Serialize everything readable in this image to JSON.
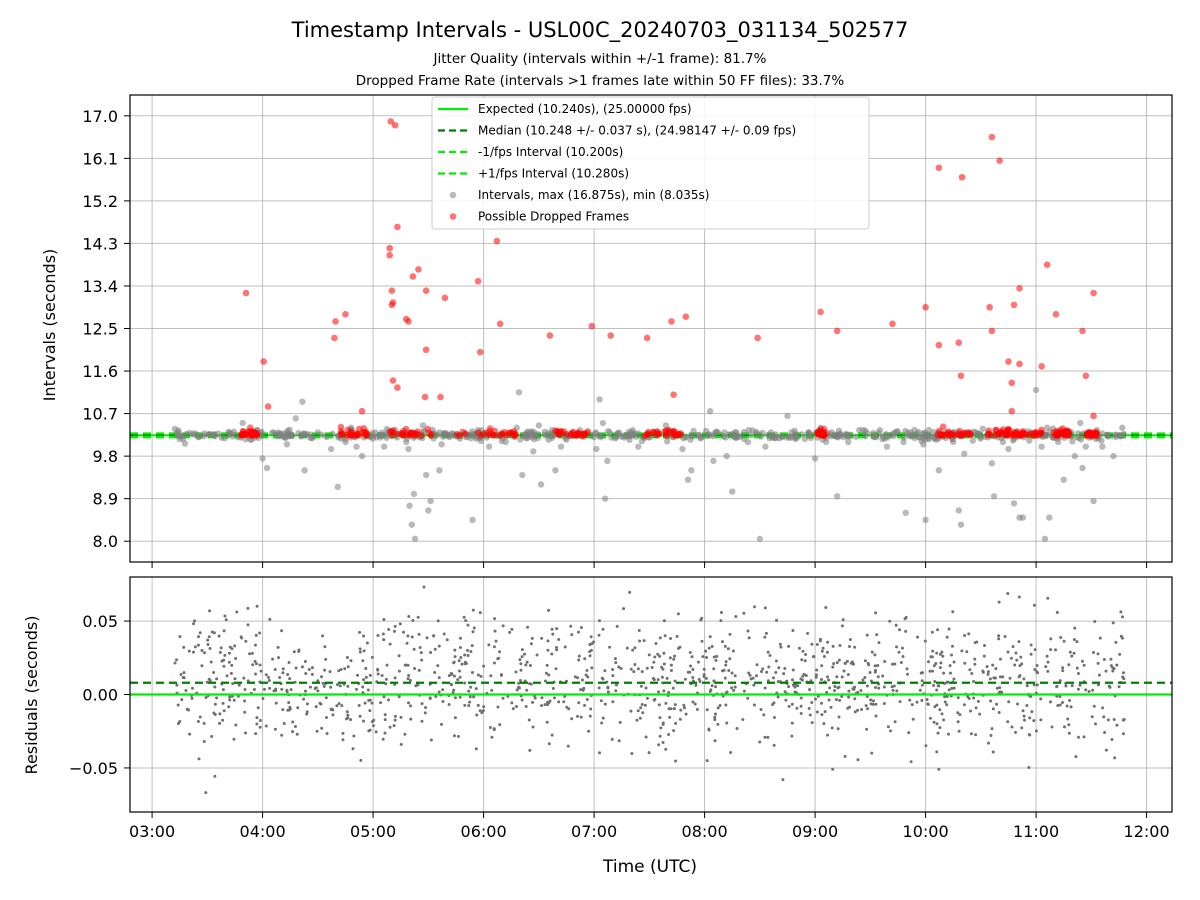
{
  "chart_data": [
    {
      "type": "scatter",
      "title": "Timestamp Intervals - USL00C_20240703_031134_502577",
      "subtitle_lines": [
        "Jitter Quality (intervals within +/-1 frame): 81.7%",
        "Dropped Frame Rate (intervals >1 frames late within 50 FF files): 33.7%"
      ],
      "ylabel": "Intervals (seconds)",
      "ylim": [
        7.56,
        17.44
      ],
      "yticks": [
        "17.0",
        "16.1",
        "15.2",
        "14.3",
        "13.4",
        "12.5",
        "11.6",
        "10.7",
        "9.8",
        "8.9",
        "8.0"
      ],
      "ytick_values": [
        17.0,
        16.1,
        15.2,
        14.3,
        13.4,
        12.5,
        11.6,
        10.7,
        9.8,
        8.9,
        8.0
      ],
      "xlim": [
        2.8,
        12.23
      ],
      "xticks": [
        "03:00",
        "04:00",
        "05:00",
        "06:00",
        "07:00",
        "08:00",
        "09:00",
        "10:00",
        "11:00",
        "12:00"
      ],
      "grid": true,
      "legend_position": "upper center",
      "reference_lines": [
        {
          "name": "Expected (10.240s), (25.00000 fps)",
          "y": 10.24,
          "style": "solid",
          "color": "#00ee00"
        },
        {
          "name": "Median (10.248 +/- 0.037 s), (24.98147 +/- 0.09 fps)",
          "y": 10.248,
          "style": "dashed",
          "color": "#007f00"
        },
        {
          "name": "-1/fps Interval (10.200s)",
          "y": 10.2,
          "style": "dashed",
          "color": "#00ee00"
        },
        {
          "name": "+1/fps Interval (10.280s)",
          "y": 10.28,
          "style": "dashed",
          "color": "#00ee00"
        }
      ],
      "series": [
        {
          "name": "Intervals, max (16.875s), min (8.035s)",
          "color": "#808080",
          "points": [
            [
              3.78,
              10.2
            ],
            [
              3.82,
              10.5
            ],
            [
              3.86,
              10.3
            ],
            [
              3.9,
              10.15
            ],
            [
              3.95,
              10.35
            ],
            [
              4.0,
              9.75
            ],
            [
              4.04,
              9.55
            ],
            [
              4.1,
              10.3
            ],
            [
              4.22,
              10.05
            ],
            [
              4.3,
              10.6
            ],
            [
              4.36,
              10.95
            ],
            [
              4.38,
              9.5
            ],
            [
              4.5,
              10.3
            ],
            [
              4.62,
              9.95
            ],
            [
              4.68,
              9.15
            ],
            [
              4.75,
              10.1
            ],
            [
              4.8,
              10.4
            ],
            [
              4.85,
              10.0
            ],
            [
              4.9,
              9.8
            ],
            [
              5.02,
              10.3
            ],
            [
              5.1,
              10.0
            ],
            [
              5.2,
              10.35
            ],
            [
              5.3,
              10.1
            ],
            [
              5.32,
              9.95
            ],
            [
              5.33,
              8.75
            ],
            [
              5.35,
              8.35
            ],
            [
              5.37,
              9.0
            ],
            [
              5.38,
              8.05
            ],
            [
              5.42,
              10.2
            ],
            [
              5.45,
              10.45
            ],
            [
              5.48,
              9.4
            ],
            [
              5.5,
              8.65
            ],
            [
              5.52,
              8.85
            ],
            [
              5.6,
              9.5
            ],
            [
              5.62,
              10.05
            ],
            [
              5.85,
              10.2
            ],
            [
              5.9,
              8.45
            ],
            [
              5.95,
              10.35
            ],
            [
              6.05,
              10.0
            ],
            [
              6.2,
              10.1
            ],
            [
              6.3,
              10.4
            ],
            [
              6.35,
              9.4
            ],
            [
              6.32,
              11.15
            ],
            [
              6.4,
              10.3
            ],
            [
              6.45,
              9.9
            ],
            [
              6.5,
              10.45
            ],
            [
              6.52,
              9.2
            ],
            [
              6.62,
              10.35
            ],
            [
              6.65,
              9.5
            ],
            [
              6.7,
              10.0
            ],
            [
              6.75,
              10.15
            ],
            [
              6.8,
              10.3
            ],
            [
              7.0,
              10.2
            ],
            [
              7.02,
              9.95
            ],
            [
              7.05,
              11.0
            ],
            [
              7.08,
              10.5
            ],
            [
              7.1,
              8.9
            ],
            [
              7.12,
              9.7
            ],
            [
              7.2,
              10.2
            ],
            [
              7.35,
              10.35
            ],
            [
              7.4,
              10.0
            ],
            [
              7.55,
              10.3
            ],
            [
              7.65,
              10.45
            ],
            [
              7.72,
              10.2
            ],
            [
              7.8,
              9.95
            ],
            [
              7.85,
              9.3
            ],
            [
              7.88,
              9.5
            ],
            [
              7.95,
              10.25
            ],
            [
              8.05,
              10.75
            ],
            [
              8.08,
              9.7
            ],
            [
              8.12,
              10.3
            ],
            [
              8.2,
              9.8
            ],
            [
              8.25,
              9.05
            ],
            [
              8.3,
              10.2
            ],
            [
              8.4,
              10.35
            ],
            [
              8.5,
              8.05
            ],
            [
              8.55,
              10.0
            ],
            [
              8.6,
              10.3
            ],
            [
              8.75,
              10.65
            ],
            [
              8.82,
              10.25
            ],
            [
              9.0,
              9.75
            ],
            [
              9.05,
              10.4
            ],
            [
              9.1,
              10.1
            ],
            [
              9.15,
              10.3
            ],
            [
              9.2,
              8.95
            ],
            [
              9.3,
              10.1
            ],
            [
              9.4,
              10.35
            ],
            [
              9.55,
              10.2
            ],
            [
              9.65,
              10.0
            ],
            [
              9.72,
              10.3
            ],
            [
              9.8,
              10.1
            ],
            [
              9.82,
              8.6
            ],
            [
              9.9,
              10.35
            ],
            [
              9.95,
              10.2
            ],
            [
              9.98,
              10.05
            ],
            [
              10.0,
              8.45
            ],
            [
              10.03,
              10.35
            ],
            [
              10.1,
              10.15
            ],
            [
              10.12,
              9.5
            ],
            [
              10.18,
              10.3
            ],
            [
              10.25,
              10.1
            ],
            [
              10.3,
              8.65
            ],
            [
              10.32,
              8.35
            ],
            [
              10.35,
              9.85
            ],
            [
              10.4,
              10.3
            ],
            [
              10.5,
              10.2
            ],
            [
              10.6,
              9.65
            ],
            [
              10.62,
              8.95
            ],
            [
              10.7,
              10.1
            ],
            [
              10.75,
              9.95
            ],
            [
              10.8,
              8.8
            ],
            [
              10.85,
              8.5
            ],
            [
              10.88,
              8.5
            ],
            [
              10.95,
              10.3
            ],
            [
              11.0,
              11.2
            ],
            [
              11.05,
              10.0
            ],
            [
              11.08,
              8.05
            ],
            [
              11.1,
              10.4
            ],
            [
              11.12,
              8.5
            ],
            [
              11.2,
              10.1
            ],
            [
              11.25,
              9.3
            ],
            [
              11.3,
              10.3
            ],
            [
              11.35,
              9.8
            ],
            [
              11.4,
              10.5
            ],
            [
              11.42,
              9.55
            ],
            [
              11.45,
              10.0
            ],
            [
              11.5,
              10.2
            ],
            [
              11.52,
              8.85
            ],
            [
              11.55,
              10.35
            ],
            [
              11.6,
              10.0
            ],
            [
              11.65,
              10.25
            ],
            [
              11.7,
              9.8
            ],
            [
              11.78,
              10.4
            ]
          ]
        },
        {
          "name": "Possible Dropped Frames",
          "color": "#ff0000",
          "points": [
            [
              3.85,
              13.25
            ],
            [
              4.01,
              11.8
            ],
            [
              4.05,
              10.85
            ],
            [
              4.65,
              12.3
            ],
            [
              4.66,
              12.65
            ],
            [
              4.75,
              12.8
            ],
            [
              4.9,
              10.75
            ],
            [
              5.16,
              16.88
            ],
            [
              5.2,
              16.8
            ],
            [
              5.15,
              14.2
            ],
            [
              5.15,
              14.05
            ],
            [
              5.22,
              14.65
            ],
            [
              5.17,
              13.3
            ],
            [
              5.18,
              13.05
            ],
            [
              5.17,
              13.0
            ],
            [
              5.18,
              11.4
            ],
            [
              5.22,
              11.25
            ],
            [
              5.3,
              12.7
            ],
            [
              5.32,
              12.65
            ],
            [
              5.36,
              13.6
            ],
            [
              5.41,
              13.75
            ],
            [
              5.48,
              13.3
            ],
            [
              5.48,
              12.05
            ],
            [
              5.47,
              11.05
            ],
            [
              5.61,
              11.05
            ],
            [
              5.65,
              13.15
            ],
            [
              5.95,
              13.5
            ],
            [
              5.97,
              12.0
            ],
            [
              6.12,
              14.35
            ],
            [
              6.15,
              12.6
            ],
            [
              6.6,
              12.35
            ],
            [
              6.98,
              12.55
            ],
            [
              7.15,
              12.35
            ],
            [
              7.48,
              12.3
            ],
            [
              7.72,
              11.1
            ],
            [
              7.83,
              12.75
            ],
            [
              7.7,
              12.65
            ],
            [
              8.48,
              12.3
            ],
            [
              9.05,
              12.85
            ],
            [
              9.2,
              12.45
            ],
            [
              9.7,
              12.6
            ],
            [
              10.0,
              12.95
            ],
            [
              10.12,
              15.9
            ],
            [
              10.33,
              15.7
            ],
            [
              10.12,
              12.15
            ],
            [
              10.3,
              12.2
            ],
            [
              10.32,
              11.5
            ],
            [
              10.58,
              12.95
            ],
            [
              10.6,
              12.45
            ],
            [
              10.6,
              16.55
            ],
            [
              10.67,
              16.05
            ],
            [
              10.75,
              11.8
            ],
            [
              10.85,
              11.75
            ],
            [
              10.78,
              11.35
            ],
            [
              10.8,
              13.0
            ],
            [
              10.85,
              13.35
            ],
            [
              10.78,
              10.75
            ],
            [
              11.05,
              11.7
            ],
            [
              11.1,
              13.85
            ],
            [
              11.18,
              12.8
            ],
            [
              11.42,
              12.45
            ],
            [
              11.45,
              11.5
            ],
            [
              11.52,
              13.25
            ],
            [
              11.52,
              10.65
            ]
          ]
        }
      ]
    },
    {
      "type": "scatter",
      "xlabel": "Time (UTC)",
      "ylabel": "Residuals (seconds)",
      "ylim": [
        -0.08,
        0.08
      ],
      "yticks": [
        "0.05",
        "0.00",
        "−0.05"
      ],
      "ytick_values": [
        0.05,
        0.0,
        -0.05
      ],
      "xlim": [
        2.8,
        12.23
      ],
      "xticks": [
        "03:00",
        "04:00",
        "05:00",
        "06:00",
        "07:00",
        "08:00",
        "09:00",
        "10:00",
        "11:00",
        "12:00"
      ],
      "x_range": [
        3.2,
        11.8
      ],
      "grid": true,
      "reference_lines": [
        {
          "y": 0.0,
          "style": "solid",
          "color": "#00ee00"
        },
        {
          "y": 0.008,
          "style": "dashed",
          "color": "#007f00"
        }
      ],
      "series": [
        {
          "name": "Residuals",
          "color": "#707070",
          "count": 1300,
          "spread": 0.025
        }
      ]
    }
  ]
}
